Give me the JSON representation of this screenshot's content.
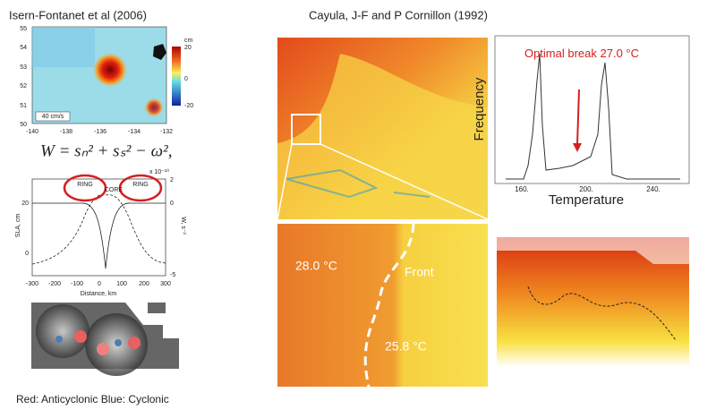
{
  "left": {
    "title": "Isern-Fontanet et al (2006)",
    "map": {
      "lat_ticks": [
        55,
        54,
        53,
        52,
        51,
        50
      ],
      "lon_ticks": [
        -140,
        -138,
        -136,
        -134,
        -132
      ],
      "colorbar_unit": "cm",
      "colorbar_ticks": [
        20,
        0,
        -20
      ],
      "scale_label": "40 cm/s"
    },
    "equation": "W = sₙ² + sₛ² − ω²,",
    "profile": {
      "labels": [
        "RING",
        "CORE",
        "RING"
      ],
      "y_label": "SLA, cm",
      "y2_label": "W, s⁻²",
      "x_label": "Distance, km",
      "exponent": "x 10⁻¹⁰",
      "x_ticks": [
        -300,
        -200,
        -100,
        0,
        100,
        200,
        300
      ],
      "y_ticks": [
        20,
        0
      ],
      "y2_ticks": [
        2,
        0,
        -5
      ]
    },
    "caption": "Red: Anticyclonic  Blue: Cyclonic"
  },
  "right": {
    "title": "Cayula, J-F and P Cornillon (1992)",
    "histogram": {
      "y_label": "Frequency",
      "x_label": "Temperature",
      "x_ticks": [
        "160.",
        "200.",
        "240."
      ],
      "annotation": "Optimal break 27.0 °C"
    },
    "zoom": {
      "warm_label": "28.0 °C",
      "front_label": "Front",
      "cool_label": "25.8 °C"
    }
  }
}
